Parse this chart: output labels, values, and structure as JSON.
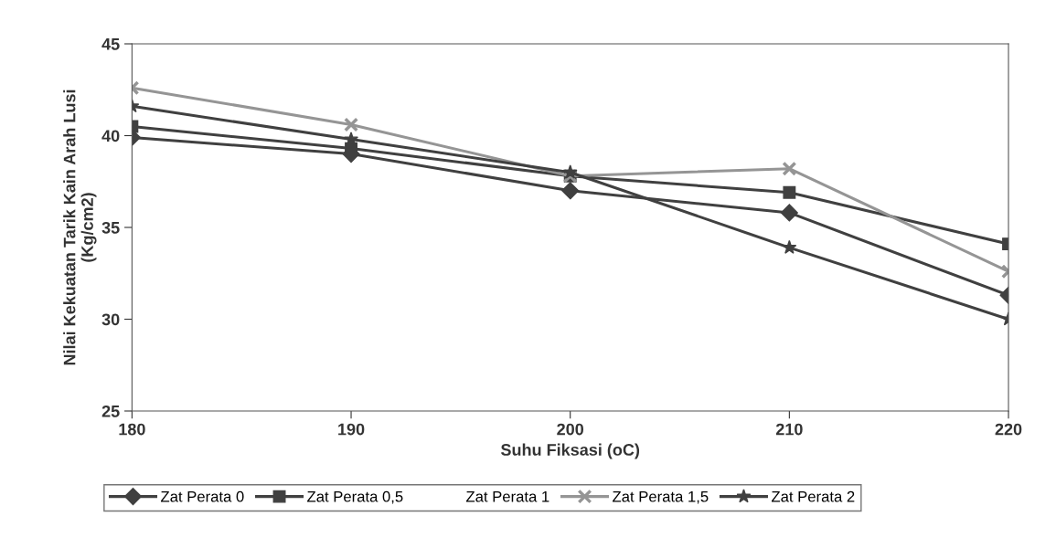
{
  "chart_data": {
    "type": "line",
    "xlabel": "Suhu Fiksasi (oC)",
    "ylabel": "Nilai Kekuatan Tarik Kain Arah Lusi\n(Kg/cm2)",
    "x": [
      180,
      190,
      200,
      210,
      220
    ],
    "xlim": [
      180,
      220
    ],
    "xticks": [
      180,
      190,
      200,
      210,
      220
    ],
    "ylim": [
      25,
      45
    ],
    "yticks": [
      25,
      30,
      35,
      40,
      45
    ],
    "grid": false,
    "legend": "bottom",
    "series": [
      {
        "name": "Zat Perata 0",
        "color": "#404040",
        "marker": "diamond",
        "values": [
          39.9,
          39.0,
          37.0,
          35.8,
          31.3
        ]
      },
      {
        "name": "Zat Perata 0,5",
        "color": "#404040",
        "marker": "square",
        "values": [
          40.5,
          39.3,
          37.8,
          36.9,
          34.1
        ]
      },
      {
        "name": "Zat Perata 1",
        "marker": "none",
        "values": [
          null,
          null,
          null,
          null,
          null
        ]
      },
      {
        "name": "Zat Perata 1,5",
        "color": "#959595",
        "marker": "cross",
        "values": [
          42.6,
          40.6,
          37.8,
          38.2,
          32.6
        ]
      },
      {
        "name": "Zat Perata 2",
        "color": "#404040",
        "marker": "star",
        "values": [
          41.6,
          39.8,
          38.0,
          33.9,
          30.0
        ]
      }
    ]
  }
}
